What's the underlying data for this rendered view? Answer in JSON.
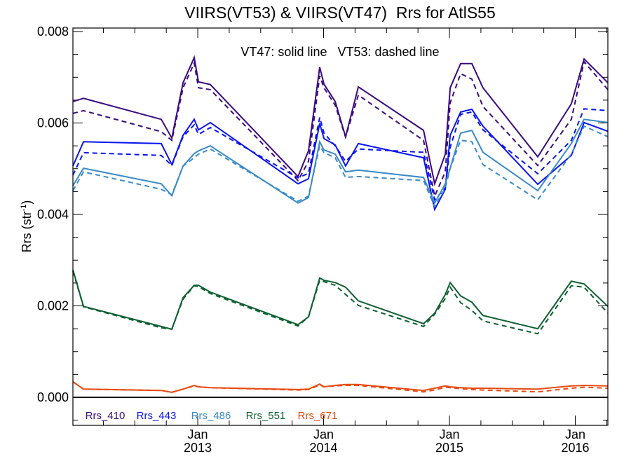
{
  "chart_data": {
    "type": "line",
    "title": "VIIRS(VT53) & VIIRS(VT47)  Rrs for AtlS55",
    "ylabel": "Rrs (str",
    "ylabel_sup": "-1",
    "ylabel_close": ")",
    "xlabel": "",
    "annotation": "VT47: solid line   VT53: dashed line",
    "xlim": [
      2012.008,
      2016.259
    ],
    "ylim": [
      -0.000613,
      0.008077
    ],
    "yticks": [
      {
        "value": 0.0,
        "label": "0.000"
      },
      {
        "value": 0.002,
        "label": "0.002"
      },
      {
        "value": 0.004,
        "label": "0.004"
      },
      {
        "value": 0.006,
        "label": "0.006"
      },
      {
        "value": 0.008,
        "label": "0.008"
      }
    ],
    "xticks": [
      {
        "value": 2013.0,
        "month": "Jan",
        "year": "2013"
      },
      {
        "value": 2014.0,
        "month": "Jan",
        "year": "2014"
      },
      {
        "value": 2015.0,
        "month": "Jan",
        "year": "2015"
      },
      {
        "value": 2016.0,
        "month": "Jan",
        "year": "2016"
      }
    ],
    "grid": false,
    "legend_placement": "bottom",
    "x": [
      2012.008,
      2012.092,
      2012.71,
      2012.794,
      2012.883,
      2012.972,
      2013.006,
      2013.1,
      2013.797,
      2013.88,
      2013.969,
      2014.003,
      2014.092,
      2014.175,
      2014.276,
      2014.794,
      2014.883,
      2014.967,
      2015.006,
      2015.089,
      2015.178,
      2015.267,
      2015.702,
      2015.969,
      2016.07,
      2016.259
    ],
    "series": [
      {
        "name": "Rrs_410",
        "color": "#3a0a80",
        "solid": [
          0.00647,
          0.00654,
          0.00608,
          0.00567,
          0.00688,
          0.00743,
          0.0069,
          0.00684,
          0.00483,
          0.00539,
          0.00722,
          0.00685,
          0.00647,
          0.0057,
          0.00679,
          0.00584,
          0.00467,
          0.00532,
          0.00677,
          0.0073,
          0.0073,
          0.00677,
          0.00526,
          0.00642,
          0.0074,
          0.00688
        ],
        "dashed": [
          0.00621,
          0.00627,
          0.00581,
          0.00562,
          0.00677,
          0.00731,
          0.00677,
          0.00673,
          0.00474,
          0.00516,
          0.00703,
          0.00677,
          0.00639,
          0.00569,
          0.00661,
          0.00562,
          0.0044,
          0.00493,
          0.00644,
          0.00708,
          0.00696,
          0.00636,
          0.00507,
          0.00608,
          0.00734,
          0.00673
        ]
      },
      {
        "name": "Rrs_443",
        "color": "#0a14f0",
        "solid": [
          0.00506,
          0.00559,
          0.00555,
          0.00509,
          0.00573,
          0.00608,
          0.00585,
          0.00601,
          0.00467,
          0.00478,
          0.00599,
          0.00566,
          0.00552,
          0.00506,
          0.00555,
          0.00524,
          0.00411,
          0.00455,
          0.00573,
          0.00624,
          0.0063,
          0.00593,
          0.00466,
          0.00529,
          0.00601,
          0.00582
        ],
        "dashed": [
          0.00486,
          0.00535,
          0.00529,
          0.00507,
          0.0057,
          0.00596,
          0.00575,
          0.0059,
          0.0048,
          0.0049,
          0.00612,
          0.00578,
          0.0055,
          0.00516,
          0.00543,
          0.00536,
          0.00432,
          0.00458,
          0.00547,
          0.00619,
          0.00624,
          0.00585,
          0.00489,
          0.00562,
          0.00631,
          0.00627
        ]
      },
      {
        "name": "Rrs_486",
        "color": "#3a8ac8",
        "solid": [
          0.00463,
          0.00501,
          0.00467,
          0.00441,
          0.00506,
          0.00533,
          0.00539,
          0.0055,
          0.00425,
          0.00437,
          0.00559,
          0.00541,
          0.00532,
          0.00493,
          0.00497,
          0.00481,
          0.00425,
          0.00467,
          0.00501,
          0.00578,
          0.00584,
          0.00536,
          0.00452,
          0.00555,
          0.00608,
          0.00601
        ],
        "dashed": [
          0.00452,
          0.00493,
          0.00455,
          0.00443,
          0.00506,
          0.00524,
          0.00532,
          0.00543,
          0.00429,
          0.0044,
          0.0055,
          0.00535,
          0.00524,
          0.00481,
          0.00483,
          0.00474,
          0.00417,
          0.00458,
          0.00501,
          0.00562,
          0.00559,
          0.00509,
          0.00432,
          0.00532,
          0.00593,
          0.0057
        ]
      },
      {
        "name": "Rrs_551",
        "color": "#0e6030",
        "solid": [
          0.00279,
          0.00199,
          0.00155,
          0.00149,
          0.00218,
          0.00245,
          0.00245,
          0.0023,
          0.00159,
          0.00176,
          0.00261,
          0.00256,
          0.00251,
          0.00241,
          0.00211,
          0.00161,
          0.00184,
          0.00225,
          0.00251,
          0.00222,
          0.00208,
          0.00179,
          0.0015,
          0.00254,
          0.00248,
          0.00199
        ],
        "dashed": [
          0.00276,
          0.00198,
          0.00152,
          0.00149,
          0.00215,
          0.00244,
          0.00242,
          0.00227,
          0.00156,
          0.00176,
          0.00256,
          0.00253,
          0.00245,
          0.00225,
          0.00201,
          0.00155,
          0.00182,
          0.00216,
          0.00241,
          0.00207,
          0.0019,
          0.00167,
          0.00139,
          0.00244,
          0.00241,
          0.00184
        ]
      },
      {
        "name": "Rrs_671",
        "color": "#e84a10",
        "solid": [
          0.00034,
          0.00018,
          0.00015,
          0.00011,
          0.00018,
          0.00026,
          0.00023,
          0.00021,
          0.00017,
          0.00018,
          0.00029,
          0.00023,
          0.00026,
          0.00028,
          0.00028,
          0.00015,
          0.0002,
          0.00025,
          0.00023,
          0.00021,
          0.0002,
          0.0002,
          0.00018,
          0.00025,
          0.00026,
          0.00025
        ],
        "dashed": [
          0.00034,
          0.00018,
          0.00015,
          0.00011,
          0.00018,
          0.00025,
          0.00023,
          0.00021,
          0.00016,
          0.00017,
          0.00027,
          0.00023,
          0.00025,
          0.00026,
          0.00026,
          0.00012,
          0.00016,
          0.00022,
          0.00021,
          0.00019,
          0.00017,
          0.00016,
          0.00012,
          0.0002,
          0.00022,
          0.0002
        ]
      }
    ]
  }
}
